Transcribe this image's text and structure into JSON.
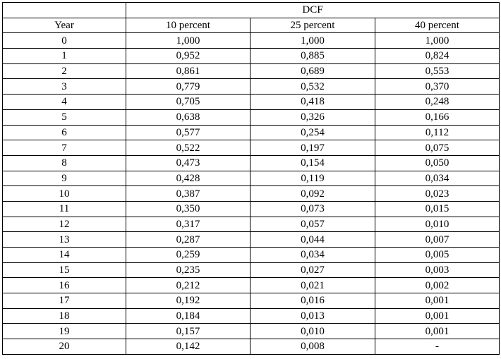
{
  "table": {
    "group_header": "DCF",
    "year_header": "Year",
    "columns": [
      "10 percent",
      "25 percent",
      "40 percent"
    ],
    "rows": [
      [
        "0",
        "1,000",
        "1,000",
        "1,000"
      ],
      [
        "1",
        "0,952",
        "0,885",
        "0,824"
      ],
      [
        "2",
        "0,861",
        "0,689",
        "0,553"
      ],
      [
        "3",
        "0,779",
        "0,532",
        "0,370"
      ],
      [
        "4",
        "0,705",
        "0,418",
        "0,248"
      ],
      [
        "5",
        "0,638",
        "0,326",
        "0,166"
      ],
      [
        "6",
        "0,577",
        "0,254",
        "0,112"
      ],
      [
        "7",
        "0,522",
        "0,197",
        "0,075"
      ],
      [
        "8",
        "0,473",
        "0,154",
        "0,050"
      ],
      [
        "9",
        "0,428",
        "0,119",
        "0,034"
      ],
      [
        "10",
        "0,387",
        "0,092",
        "0,023"
      ],
      [
        "11",
        "0,350",
        "0,073",
        "0,015"
      ],
      [
        "12",
        "0,317",
        "0,057",
        "0,010"
      ],
      [
        "13",
        "0,287",
        "0,044",
        "0,007"
      ],
      [
        "14",
        "0,259",
        "0,034",
        "0,005"
      ],
      [
        "15",
        "0,235",
        "0,027",
        "0,003"
      ],
      [
        "16",
        "0,212",
        "0,021",
        "0,002"
      ],
      [
        "17",
        "0,192",
        "0,016",
        "0,001"
      ],
      [
        "18",
        "0,184",
        "0,013",
        "0,001"
      ],
      [
        "19",
        "0,157",
        "0,010",
        "0,001"
      ],
      [
        "20",
        "0,142",
        "0,008",
        "-"
      ]
    ]
  }
}
